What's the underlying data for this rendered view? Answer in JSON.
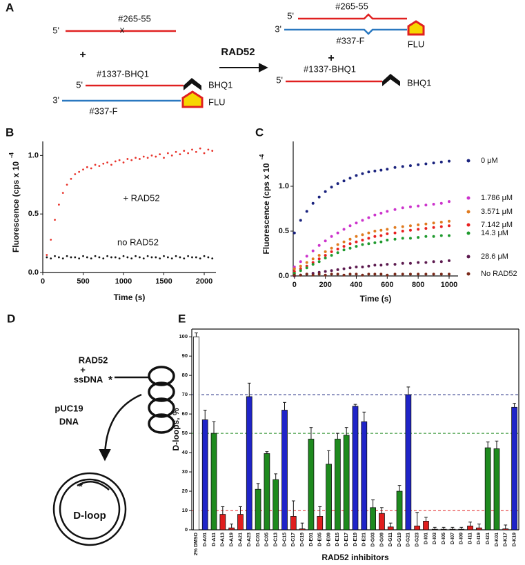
{
  "panel_labels": [
    "A",
    "B",
    "C",
    "D",
    "E"
  ],
  "scheme_a": {
    "left": {
      "top_5": "5'",
      "top_strand": "#265-55",
      "mismatch": "x",
      "plus": "+",
      "probe_5": "5'",
      "probe": "#1337-BHQ1",
      "quencher": "BHQ1",
      "bottom_3": "3'",
      "fluor": "FLU",
      "bottom_strand": "#337-F"
    },
    "arrow_label": "RAD52",
    "right": {
      "top_5": "5'",
      "top_strand": "#265-55",
      "bottom_3": "3'",
      "bottom_strand": "#337-F",
      "fluor": "FLU",
      "plus": "+",
      "probe": "#1337-BHQ1",
      "probe_5": "5'",
      "quencher": "BHQ1"
    }
  },
  "scheme_d": {
    "protein": "RAD52",
    "plus": "+",
    "ssdna": "ssDNA",
    "ssdna_star": "*",
    "plasmid": "pUC19",
    "plasmid_2": "DNA",
    "loop_star": "*",
    "product": "D-loop"
  },
  "chart_data": [
    {
      "type": "scatter",
      "ylabel": "Fluorescence (cps x 10",
      "ylabel_exponent": "-4",
      "xlabel": "Time (s)",
      "xlim": [
        0,
        2145
      ],
      "xticks": [
        0,
        500,
        1000,
        1500,
        2000
      ],
      "ylim": [
        0,
        1.12
      ],
      "yticks": [
        {
          "value": 0,
          "label": "0.0"
        },
        0.5,
        {
          "value": 1,
          "label": "1.0"
        }
      ],
      "x": [
        50,
        100,
        150,
        200,
        250,
        300,
        350,
        400,
        450,
        500,
        550,
        600,
        650,
        700,
        750,
        800,
        850,
        900,
        950,
        1000,
        1050,
        1100,
        1150,
        1200,
        1250,
        1300,
        1350,
        1400,
        1450,
        1500,
        1550,
        1600,
        1650,
        1700,
        1750,
        1800,
        1850,
        1900,
        1950,
        2000,
        2050,
        2100
      ],
      "series": [
        {
          "name": "+ RAD52",
          "color": "#e8332b",
          "values": [
            0.15,
            0.28,
            0.45,
            0.58,
            0.68,
            0.75,
            0.8,
            0.84,
            0.86,
            0.88,
            0.9,
            0.89,
            0.92,
            0.91,
            0.93,
            0.94,
            0.92,
            0.95,
            0.96,
            0.94,
            0.97,
            0.96,
            0.98,
            0.97,
            0.99,
            0.98,
            1.0,
            0.99,
            1.01,
            0.98,
            1.02,
            1.0,
            1.03,
            1.01,
            1.04,
            1.02,
            1.05,
            1.03,
            1.06,
            1.02,
            1.05,
            1.04
          ]
        },
        {
          "name": "no RAD52",
          "color": "#111111",
          "values": [
            0.13,
            0.12,
            0.14,
            0.13,
            0.12,
            0.14,
            0.13,
            0.13,
            0.12,
            0.14,
            0.13,
            0.12,
            0.14,
            0.13,
            0.12,
            0.14,
            0.13,
            0.13,
            0.12,
            0.14,
            0.13,
            0.12,
            0.14,
            0.13,
            0.12,
            0.14,
            0.13,
            0.13,
            0.12,
            0.14,
            0.13,
            0.12,
            0.14,
            0.13,
            0.12,
            0.14,
            0.13,
            0.13,
            0.12,
            0.14,
            0.13,
            0.12
          ]
        }
      ]
    },
    {
      "type": "scatter",
      "ylabel": "Fluorescence (cps x 10",
      "ylabel_exponent": "-4",
      "xlabel": "Time (s)",
      "xlim": [
        -8,
        1058
      ],
      "xticks": [
        0,
        200,
        400,
        600,
        800,
        1000
      ],
      "ylim": [
        0,
        1.5
      ],
      "yticks": [
        {
          "value": 0,
          "label": "0.0"
        },
        0.5,
        {
          "value": 1,
          "label": "1.0"
        }
      ],
      "x": [
        0,
        40,
        80,
        120,
        160,
        200,
        240,
        280,
        320,
        360,
        400,
        440,
        480,
        520,
        560,
        600,
        650,
        700,
        750,
        800,
        850,
        900,
        950,
        1000
      ],
      "series": [
        {
          "name": "0 μM",
          "color": "#1a237e",
          "values": [
            0.48,
            0.62,
            0.72,
            0.81,
            0.88,
            0.94,
            0.99,
            1.03,
            1.06,
            1.09,
            1.12,
            1.14,
            1.16,
            1.17,
            1.18,
            1.19,
            1.21,
            1.22,
            1.23,
            1.24,
            1.25,
            1.26,
            1.27,
            1.28
          ]
        },
        {
          "name": "1.786 μM",
          "color": "#cc33cc",
          "values": [
            0.1,
            0.16,
            0.22,
            0.28,
            0.34,
            0.39,
            0.44,
            0.48,
            0.52,
            0.56,
            0.59,
            0.62,
            0.65,
            0.68,
            0.7,
            0.72,
            0.74,
            0.76,
            0.77,
            0.78,
            0.79,
            0.8,
            0.81,
            0.83
          ]
        },
        {
          "name": "3.571 μM",
          "color": "#e07b1f",
          "values": [
            0.08,
            0.11,
            0.15,
            0.19,
            0.23,
            0.27,
            0.31,
            0.35,
            0.38,
            0.41,
            0.44,
            0.46,
            0.48,
            0.5,
            0.51,
            0.52,
            0.54,
            0.55,
            0.56,
            0.57,
            0.58,
            0.59,
            0.6,
            0.61
          ]
        },
        {
          "name": "7.142 μM",
          "color": "#e82020",
          "values": [
            0.05,
            0.08,
            0.11,
            0.15,
            0.19,
            0.23,
            0.27,
            0.3,
            0.33,
            0.36,
            0.38,
            0.4,
            0.42,
            0.44,
            0.45,
            0.47,
            0.48,
            0.5,
            0.51,
            0.52,
            0.53,
            0.54,
            0.55,
            0.56
          ]
        },
        {
          "name": "14.3 μM",
          "color": "#1f9a2e",
          "values": [
            0.03,
            0.06,
            0.09,
            0.13,
            0.16,
            0.2,
            0.23,
            0.26,
            0.29,
            0.31,
            0.33,
            0.35,
            0.36,
            0.37,
            0.38,
            0.4,
            0.41,
            0.42,
            0.42,
            0.43,
            0.44,
            0.44,
            0.45,
            0.45
          ]
        },
        {
          "name": "28.6 μM",
          "color": "#5c1a4f",
          "values": [
            0.0,
            0.01,
            0.02,
            0.03,
            0.04,
            0.05,
            0.06,
            0.07,
            0.08,
            0.09,
            0.1,
            0.1,
            0.11,
            0.12,
            0.12,
            0.13,
            0.13,
            0.14,
            0.14,
            0.15,
            0.15,
            0.16,
            0.16,
            0.17
          ]
        },
        {
          "name": "No RAD52",
          "color": "#7a2a1a",
          "values": [
            0.01,
            0.01,
            0.02,
            0.01,
            0.02,
            0.01,
            0.02,
            0.02,
            0.01,
            0.02,
            0.02,
            0.01,
            0.02,
            0.02,
            0.02,
            0.01,
            0.02,
            0.02,
            0.02,
            0.02,
            0.02,
            0.02,
            0.02,
            0.02
          ]
        }
      ]
    },
    {
      "type": "bar",
      "ylabel": "D-loops, %",
      "xlabel": "RAD52 inhibitors",
      "ylim": [
        0,
        104
      ],
      "yticks": [
        0,
        10,
        20,
        30,
        40,
        50,
        60,
        70,
        80,
        90,
        100
      ],
      "categories": [
        "2% DMSO",
        "D-A01",
        "D-A11",
        "D-A13",
        "D-A19",
        "D-A21",
        "D-A23",
        "D-C01",
        "D-C05",
        "D-C13",
        "D-C15",
        "D-C17",
        "D-C19",
        "D-E01",
        "D-E05",
        "D-E09",
        "D-E15",
        "D-E17",
        "D-E19",
        "D-E21",
        "D-G03",
        "D-G09",
        "D-G11",
        "D-G19",
        "D-G21",
        "D-G23",
        "D-I01",
        "D-I03",
        "D-I05",
        "D-I07",
        "D-I09",
        "D-I11",
        "D-I19",
        "D-I21",
        "D-K01",
        "D-K17",
        "D-K19"
      ],
      "values": [
        100,
        57,
        50,
        8,
        1,
        8,
        69,
        21,
        39.5,
        26,
        62,
        7,
        0.5,
        47,
        7,
        34,
        47,
        49,
        64,
        56,
        11.5,
        8.5,
        1.5,
        20,
        70,
        2,
        4.5,
        0.3,
        0.3,
        0.3,
        0.3,
        2,
        1,
        42.5,
        42,
        0.5,
        63.5
      ],
      "errors": [
        2,
        5,
        6,
        4,
        2,
        4,
        7,
        3,
        1,
        3,
        4,
        8,
        3,
        6,
        5,
        7,
        3,
        4,
        1,
        5,
        4,
        3,
        2,
        3,
        4,
        7,
        2,
        1,
        1,
        1,
        1,
        2,
        2,
        3,
        4,
        2,
        2
      ],
      "colors": [
        "#ffffff",
        "#1f24c8",
        "#1e8a1e",
        "#e01e1e",
        "#e01e1e",
        "#e01e1e",
        "#1f24c8",
        "#1e8a1e",
        "#1e8a1e",
        "#1e8a1e",
        "#1f24c8",
        "#e01e1e",
        "#e01e1e",
        "#1e8a1e",
        "#e01e1e",
        "#1e8a1e",
        "#1e8a1e",
        "#1e8a1e",
        "#1f24c8",
        "#1f24c8",
        "#1e8a1e",
        "#e01e1e",
        "#e01e1e",
        "#1e8a1e",
        "#1f24c8",
        "#e01e1e",
        "#e01e1e",
        "#e01e1e",
        "#e01e1e",
        "#e01e1e",
        "#e01e1e",
        "#e01e1e",
        "#e01e1e",
        "#1e8a1e",
        "#1e8a1e",
        "#e01e1e",
        "#1f24c8"
      ],
      "reference_lines": [
        {
          "value": 70,
          "color": "#1a237e"
        },
        {
          "value": 50,
          "color": "#1e8a1e"
        },
        {
          "value": 10,
          "color": "#e01e1e"
        }
      ]
    }
  ]
}
